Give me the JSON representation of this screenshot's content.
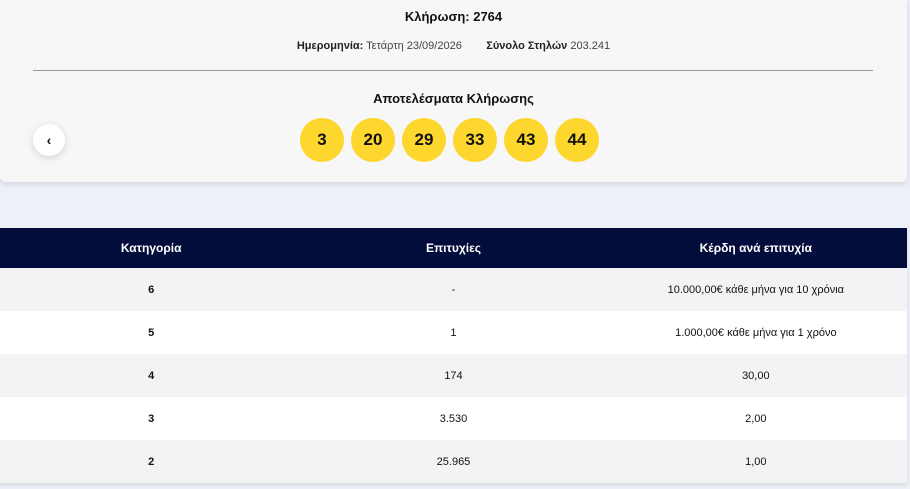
{
  "draw": {
    "title": "Κλήρωση: 2764",
    "date_label": "Ημερομηνία:",
    "date": "Τετάρτη 23/09/2026",
    "columns_label": "Σύνολο Στηλών",
    "columns": "203.241"
  },
  "results": {
    "title": "Αποτελέσματα Κλήρωσης",
    "numbers": [
      3,
      20,
      29,
      33,
      43,
      44
    ]
  },
  "table": {
    "headers": [
      "Κατηγορία",
      "Επιτυχίες",
      "Κέρδη ανά επιτυχία"
    ],
    "rows": [
      [
        "6",
        "-",
        "10.000,00€ κάθε μήνα για 10 χρόνια"
      ],
      [
        "5",
        "1",
        "1.000,00€ κάθε μήνα για 1 χρόνο"
      ],
      [
        "4",
        "174",
        "30,00"
      ],
      [
        "3",
        "3.530",
        "2,00"
      ],
      [
        "2",
        "25.965",
        "1,00"
      ]
    ]
  }
}
